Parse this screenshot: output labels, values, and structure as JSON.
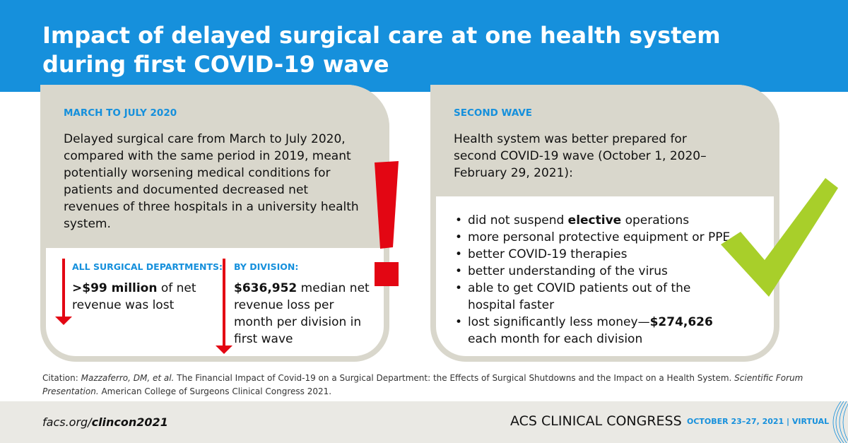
{
  "title": "Impact of delayed surgical care at one health system during first COVID-19 wave",
  "left_card": {
    "label": "MARCH TO JULY 2020",
    "body": "Delayed surgical care from March to July 2020, compared with the same period in 2019, meant potentially worsening medical conditions for patients and documented decreased net revenues of three hospitals in a university health system.",
    "stat1": {
      "label": "ALL SURGICAL DEPARTMENTS:",
      "bold": ">$99 million",
      "text": " of net revenue was lost"
    },
    "stat2": {
      "label": "BY DIVISION:",
      "bold": "$636,952",
      "text": " median net revenue loss per month per division in first wave"
    }
  },
  "right_card": {
    "label": "SECOND WAVE",
    "body": "Health system was better prepared for second COVID-19 wave (October 1, 2020–February 29, 2021):",
    "bullets": [
      {
        "pre": "did not suspend ",
        "bold": "elective",
        "post": " operations"
      },
      {
        "pre": "more personal protective equipment or PPE",
        "bold": "",
        "post": ""
      },
      {
        "pre": "better COVID-19 therapies",
        "bold": "",
        "post": ""
      },
      {
        "pre": "better understanding of the virus",
        "bold": "",
        "post": ""
      },
      {
        "pre": "able to get COVID patients out of the hospital faster",
        "bold": "",
        "post": ""
      },
      {
        "pre": "lost significantly less money—",
        "bold": "$274,626",
        "post": " each month for each division"
      }
    ]
  },
  "citation": {
    "prefix": "Citation: ",
    "authors": "Mazzaferro, DM, et al.",
    "title": " The Financial Impact of Covid-19 on a Surgical Department: the Effects of Surgical Shutdowns and the Impact on a Health System. ",
    "venue": "Scientific Forum Presentation.",
    "suffix": " American College of Surgeons Clinical Congress 2021."
  },
  "footer": {
    "url_prefix": "facs.org/",
    "url_bold": "clincon2021",
    "event": "ACS CLINICAL CONGRESS",
    "dates": "OCTOBER 23–27, 2021 | VIRTUAL"
  },
  "colors": {
    "blue": "#1690dc",
    "red": "#e30613",
    "green": "#a8cf2a",
    "beige": "#d9d7cc"
  },
  "icons": [
    "exclamation-icon",
    "checkmark-icon",
    "down-arrow-icon"
  ]
}
